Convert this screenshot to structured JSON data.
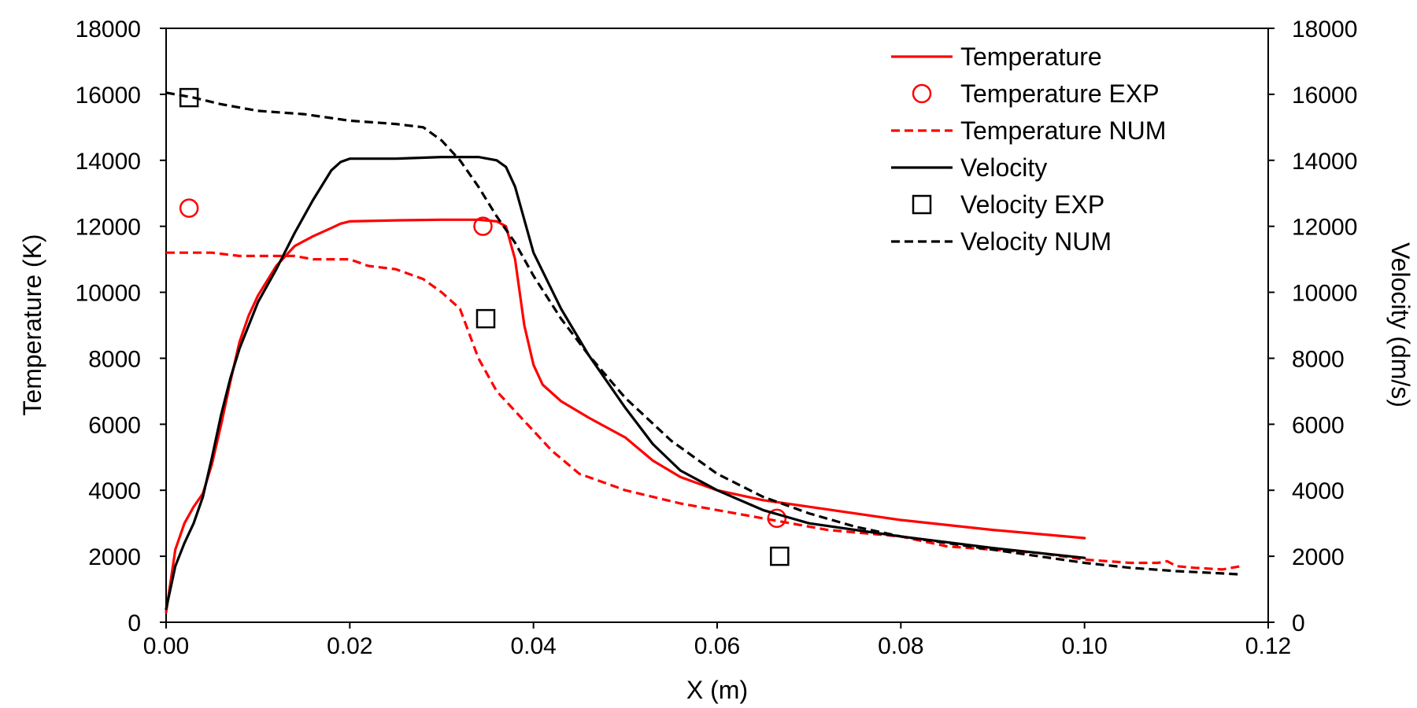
{
  "chart_data": {
    "type": "line",
    "title": "",
    "xlabel": "X (m)",
    "ylabel": "Temperature (K)",
    "y2label": "Velocity (dm/s)",
    "xlim": [
      0,
      0.12
    ],
    "ylim": [
      0,
      18000
    ],
    "y2lim": [
      0,
      18000
    ],
    "grid": false,
    "legend_position": "top-right",
    "x_ticks": [
      "0.00",
      "0.02",
      "0.04",
      "0.06",
      "0.08",
      "0.10",
      "0.12"
    ],
    "x_tick_values": [
      0,
      0.02,
      0.04,
      0.06,
      0.08,
      0.1,
      0.12
    ],
    "y_ticks": [
      "0",
      "2000",
      "4000",
      "6000",
      "8000",
      "10000",
      "12000",
      "14000",
      "16000",
      "18000"
    ],
    "y_tick_values": [
      0,
      2000,
      4000,
      6000,
      8000,
      10000,
      12000,
      14000,
      16000,
      18000
    ],
    "y2_ticks": [
      "0",
      "2000",
      "4000",
      "6000",
      "8000",
      "10000",
      "12000",
      "14000",
      "16000",
      "18000"
    ],
    "y2_tick_values": [
      0,
      2000,
      4000,
      6000,
      8000,
      10000,
      12000,
      14000,
      16000,
      18000
    ],
    "series": [
      {
        "name": "Temperature",
        "style": "solid-line",
        "color": "#ff0000",
        "axis": "left",
        "x": [
          0,
          0.001,
          0.002,
          0.003,
          0.004,
          0.005,
          0.006,
          0.007,
          0.008,
          0.009,
          0.01,
          0.012,
          0.014,
          0.016,
          0.018,
          0.019,
          0.02,
          0.025,
          0.03,
          0.034,
          0.036,
          0.037,
          0.038,
          0.039,
          0.04,
          0.041,
          0.043,
          0.046,
          0.05,
          0.053,
          0.056,
          0.06,
          0.065,
          0.07,
          0.08,
          0.09,
          0.1
        ],
        "y": [
          300,
          2200,
          3000,
          3500,
          3900,
          4800,
          6000,
          7300,
          8500,
          9300,
          9900,
          10800,
          11400,
          11700,
          11950,
          12080,
          12150,
          12180,
          12200,
          12200,
          12150,
          12000,
          11000,
          9000,
          7800,
          7200,
          6700,
          6200,
          5600,
          4900,
          4400,
          4000,
          3700,
          3500,
          3100,
          2800,
          2550
        ]
      },
      {
        "name": "Temperature EXP",
        "style": "circle-marker",
        "color": "#ff0000",
        "axis": "left",
        "x": [
          0.0025,
          0.0345,
          0.0665
        ],
        "y": [
          12550,
          12000,
          3150
        ]
      },
      {
        "name": "Temperature NUM",
        "style": "dashed-line",
        "color": "#ff0000",
        "axis": "left",
        "x": [
          0,
          0.005,
          0.008,
          0.01,
          0.012,
          0.014,
          0.016,
          0.018,
          0.02,
          0.022,
          0.025,
          0.028,
          0.03,
          0.032,
          0.034,
          0.036,
          0.038,
          0.04,
          0.042,
          0.045,
          0.048,
          0.05,
          0.053,
          0.056,
          0.06,
          0.064,
          0.068,
          0.072,
          0.076,
          0.08,
          0.085,
          0.09,
          0.095,
          0.1,
          0.105,
          0.108,
          0.109,
          0.11,
          0.112,
          0.115,
          0.117
        ],
        "y": [
          11200,
          11200,
          11100,
          11100,
          11100,
          11100,
          11000,
          11000,
          11000,
          10800,
          10700,
          10400,
          10000,
          9500,
          8000,
          7000,
          6400,
          5800,
          5200,
          4500,
          4200,
          4000,
          3800,
          3600,
          3400,
          3200,
          3000,
          2800,
          2700,
          2600,
          2300,
          2200,
          2100,
          1900,
          1800,
          1800,
          1850,
          1700,
          1650,
          1600,
          1700
        ]
      },
      {
        "name": "Velocity",
        "style": "solid-line",
        "color": "#000000",
        "axis": "right",
        "x": [
          0,
          0.001,
          0.002,
          0.003,
          0.004,
          0.005,
          0.006,
          0.007,
          0.008,
          0.009,
          0.01,
          0.012,
          0.014,
          0.016,
          0.018,
          0.019,
          0.02,
          0.025,
          0.03,
          0.034,
          0.036,
          0.037,
          0.038,
          0.04,
          0.043,
          0.046,
          0.05,
          0.053,
          0.056,
          0.06,
          0.065,
          0.07,
          0.08,
          0.09,
          0.1
        ],
        "y": [
          400,
          1700,
          2400,
          3000,
          3800,
          5000,
          6300,
          7400,
          8300,
          9000,
          9700,
          10700,
          11800,
          12800,
          13700,
          13950,
          14050,
          14050,
          14100,
          14100,
          14000,
          13800,
          13200,
          11200,
          9500,
          8100,
          6500,
          5400,
          4600,
          4000,
          3400,
          3000,
          2600,
          2250,
          1950
        ]
      },
      {
        "name": "Velocity EXP",
        "style": "square-marker",
        "color": "#000000",
        "axis": "right",
        "x": [
          0.0025,
          0.0348,
          0.0668
        ],
        "y": [
          15900,
          9200,
          2000
        ]
      },
      {
        "name": "Velocity NUM",
        "style": "dashed-line",
        "color": "#000000",
        "axis": "right",
        "x": [
          0,
          0.003,
          0.006,
          0.01,
          0.015,
          0.02,
          0.025,
          0.028,
          0.03,
          0.032,
          0.034,
          0.036,
          0.038,
          0.04,
          0.043,
          0.046,
          0.05,
          0.055,
          0.06,
          0.065,
          0.07,
          0.075,
          0.08,
          0.085,
          0.09,
          0.095,
          0.1,
          0.105,
          0.11,
          0.115,
          0.117
        ],
        "y": [
          16050,
          15900,
          15700,
          15500,
          15400,
          15200,
          15100,
          15000,
          14600,
          14000,
          13200,
          12300,
          11500,
          10500,
          9200,
          8100,
          6800,
          5500,
          4500,
          3800,
          3300,
          2900,
          2600,
          2400,
          2200,
          2000,
          1800,
          1650,
          1550,
          1480,
          1450
        ]
      }
    ]
  }
}
